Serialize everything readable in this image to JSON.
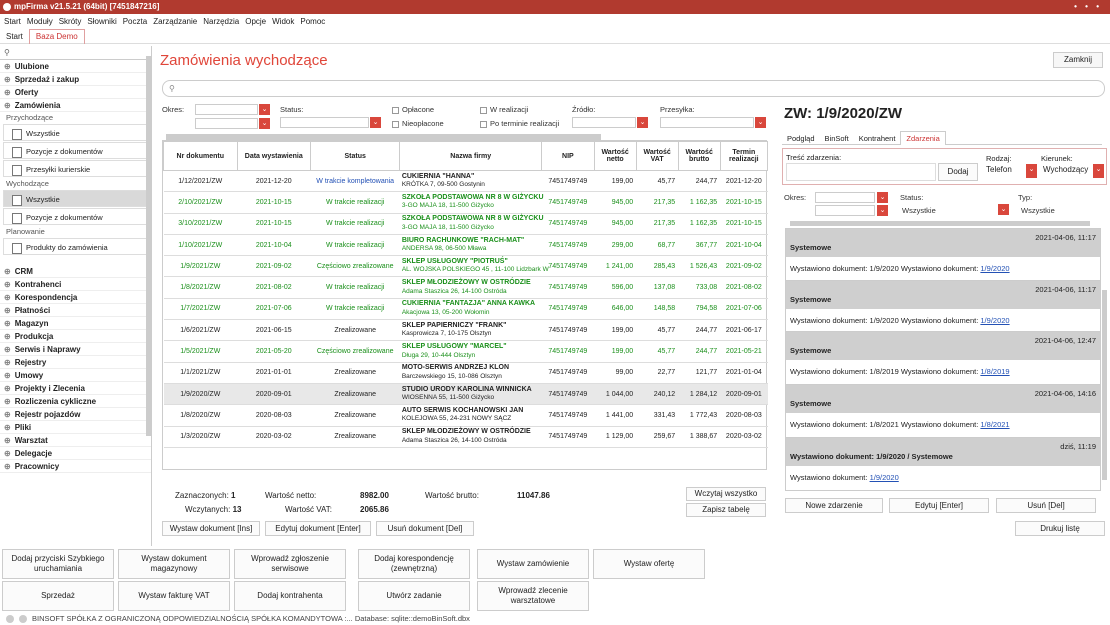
{
  "window": {
    "title": "mpFirma v21.5.21 (64bit) [7451847216]",
    "controls": "• • •"
  },
  "menu": [
    "Start",
    "Moduły",
    "Skróty",
    "Słowniki",
    "Poczta",
    "Zarządzanie",
    "Narzędzia",
    "Opcje",
    "Widok",
    "Pomoc"
  ],
  "tabs": [
    "Start",
    "Baza Demo"
  ],
  "sidebar": {
    "search_icon": "search-icon",
    "top_items": [
      "Ulubione",
      "Sprzedaż i zakup",
      "Oferty",
      "Zamówienia"
    ],
    "groups": [
      {
        "label": "Przychodzące",
        "items": [
          "Wszystkie",
          "Pozycje z dokumentów",
          "Przesyłki kurierskie"
        ]
      },
      {
        "label": "Wychodzące",
        "items": [
          "Wszystkie",
          "Pozycje z dokumentów"
        ]
      },
      {
        "label": "Planowanie",
        "items": [
          "Produkty do zamówienia"
        ]
      }
    ],
    "bottom_items": [
      "CRM",
      "Kontrahenci",
      "Korespondencja",
      "Płatności",
      "Magazyn",
      "Produkcja",
      "Serwis i Naprawy",
      "Rejestry",
      "Umowy",
      "Projekty i Zlecenia",
      "Rozliczenia cykliczne",
      "Rejestr pojazdów",
      "Pliki",
      "Warsztat",
      "Delegacje",
      "Pracownicy"
    ]
  },
  "page": {
    "title": "Zamówienia wychodzące",
    "close_label": "Zamknij"
  },
  "filters": {
    "okres": "Okres:",
    "status": "Status:",
    "oplacone": "Opłacone",
    "nieoplacone": "Nieopłacone",
    "w_realizacji": "W realizacji",
    "po_terminie": "Po terminie realizacji",
    "zrodlo": "Źródło:",
    "przesylka": "Przesyłka:"
  },
  "grid": {
    "columns": [
      "Nr dokumentu",
      "Data wystawienia",
      "Status",
      "Nazwa firmy",
      "NIP",
      "Wartość netto",
      "Wartość VAT",
      "Wartość brutto",
      "Termin realizacji"
    ],
    "rows": [
      {
        "nr": "1/12/2021/ZW",
        "data": "2021-12-20",
        "status": "W trakcie kompletowania",
        "firma": "CUKIERNIA \"HANNA\"",
        "adres": "KRÓTKA 7, 09-500 Gostynin",
        "nip": "7451749749",
        "netto": "199,00",
        "vat": "45,77",
        "brutto": "244,77",
        "termin": "2021-12-20",
        "style": "blue"
      },
      {
        "nr": "2/10/2021/ZW",
        "data": "2021-10-15",
        "status": "W trakcie realizacji",
        "firma": "SZKOŁA PODSTAWOWA NR 8 W GIŻYCKU",
        "adres": "3-GO MAJA 18, 11-500 Giżycko",
        "nip": "7451749749",
        "netto": "945,00",
        "vat": "217,35",
        "brutto": "1 162,35",
        "termin": "2021-10-15",
        "style": "green"
      },
      {
        "nr": "3/10/2021/ZW",
        "data": "2021-10-15",
        "status": "W trakcie realizacji",
        "firma": "SZKOŁA PODSTAWOWA NR 8 W GIŻYCKU",
        "adres": "3-GO MAJA 18, 11-500 Giżycko",
        "nip": "7451749749",
        "netto": "945,00",
        "vat": "217,35",
        "brutto": "1 162,35",
        "termin": "2021-10-15",
        "style": "green"
      },
      {
        "nr": "1/10/2021/ZW",
        "data": "2021-10-04",
        "status": "W trakcie realizacji",
        "firma": "BIURO RACHUNKOWE \"RACH-MAT\"",
        "adres": "ANDERSA 98, 06-500 Mława",
        "nip": "7451749749",
        "netto": "299,00",
        "vat": "68,77",
        "brutto": "367,77",
        "termin": "2021-10-04",
        "style": "green"
      },
      {
        "nr": "1/9/2021/ZW",
        "data": "2021-09-02",
        "status": "Częściowo zrealizowane",
        "firma": "SKLEP USŁUGOWY \"PIOTRUŚ\"",
        "adres": "AL. WOJSKA POLSKIEGO 45 , 11-100 Lidzbark W",
        "nip": "7451749749",
        "netto": "1 241,00",
        "vat": "285,43",
        "brutto": "1 526,43",
        "termin": "2021-09-02",
        "style": "green-blue"
      },
      {
        "nr": "1/8/2021/ZW",
        "data": "2021-08-02",
        "status": "W trakcie realizacji",
        "firma": "SKLEP MŁODZIEŻOWY W OSTRÓDZIE",
        "adres": "Adama Staszica 26, 14-100 Ostróda",
        "nip": "7451749749",
        "netto": "596,00",
        "vat": "137,08",
        "brutto": "733,08",
        "termin": "2021-08-02",
        "style": "green"
      },
      {
        "nr": "1/7/2021/ZW",
        "data": "2021-07-06",
        "status": "W trakcie realizacji",
        "firma": "CUKIERNIA \"FANTAZJA\" ANNA KAWKA",
        "adres": "Akacjowa 13, 05-200 Wołomin",
        "nip": "7451749749",
        "netto": "646,00",
        "vat": "148,58",
        "brutto": "794,58",
        "termin": "2021-07-06",
        "style": "green"
      },
      {
        "nr": "1/6/2021/ZW",
        "data": "2021-06-15",
        "status": "Zrealizowane",
        "firma": "SKLEP PAPIERNICZY \"FRANK\"",
        "adres": "Kasprowicza 7, 10-175 Olsztyn",
        "nip": "7451749749",
        "netto": "199,00",
        "vat": "45,77",
        "brutto": "244,77",
        "termin": "2021-06-17",
        "style": ""
      },
      {
        "nr": "1/5/2021/ZW",
        "data": "2021-05-20",
        "status": "Częściowo zrealizowane",
        "firma": "SKLEP USŁUGOWY \"MARCEL\"",
        "adres": "Długa 29, 10-444 Olsztyn",
        "nip": "7451749749",
        "netto": "199,00",
        "vat": "45,77",
        "brutto": "244,77",
        "termin": "2021-05-21",
        "style": "green-blue"
      },
      {
        "nr": "1/1/2021/ZW",
        "data": "2021-01-01",
        "status": "Zrealizowane",
        "firma": "MOTO-SERWIS ANDRZEJ KLON",
        "adres": "Barczewskiego 15, 10-086 Olsztyn",
        "nip": "7451749749",
        "netto": "99,00",
        "vat": "22,77",
        "brutto": "121,77",
        "termin": "2021-01-04",
        "style": ""
      },
      {
        "nr": "1/9/2020/ZW",
        "data": "2020-09-01",
        "status": "Zrealizowane",
        "firma": "STUDIO URODY KAROLINA WINNICKA",
        "adres": "WIOSENNA 55, 11-500 Giżycko",
        "nip": "7451749749",
        "netto": "1 044,00",
        "vat": "240,12",
        "brutto": "1 284,12",
        "termin": "2020-09-01",
        "style": "sel"
      },
      {
        "nr": "1/8/2020/ZW",
        "data": "2020-08-03",
        "status": "Zrealizowane",
        "firma": "AUTO SERWIS KOCHANOWSKI JAN",
        "adres": "KOLEJOWA 55, 24-231 NOWY SĄCZ",
        "nip": "7451749749",
        "netto": "1 441,00",
        "vat": "331,43",
        "brutto": "1 772,43",
        "termin": "2020-08-03",
        "style": ""
      },
      {
        "nr": "1/3/2020/ZW",
        "data": "2020-03-02",
        "status": "Zrealizowane",
        "firma": "SKLEP MŁODZIEŻOWY W OSTRÓDZIE",
        "adres": "Adama Staszica 26, 14-100 Ostróda",
        "nip": "7451749749",
        "netto": "1 129,00",
        "vat": "259,67",
        "brutto": "1 388,67",
        "termin": "2020-03-02",
        "style": ""
      }
    ]
  },
  "summary": {
    "zaznaczonych_label": "Zaznaczonych:",
    "zaznaczonych": "1",
    "wczytanych_label": "Wczytanych:",
    "wczytanych": "13",
    "netto_label": "Wartość netto:",
    "netto": "8982.00",
    "vat_label": "Wartość VAT:",
    "vat": "2065.86",
    "brutto_label": "Wartość brutto:",
    "brutto": "11047.86",
    "load_all": "Wczytaj wszystko",
    "save_table": "Zapisz tabelę"
  },
  "actions": {
    "issue": "Wystaw dokument [Ins]",
    "edit": "Edytuj dokument [Enter]",
    "delete": "Usuń dokument [Del]"
  },
  "right": {
    "title": "ZW: 1/9/2020/ZW",
    "tabs": [
      "Podgląd",
      "BinSoft",
      "Kontrahent",
      "Zdarzenia"
    ],
    "tresc_label": "Treść zdarzenia:",
    "dodaj": "Dodaj",
    "rodzaj_label": "Rodzaj:",
    "rodzaj": "Telefon",
    "kierunek_label": "Kierunek:",
    "kierunek": "Wychodzący",
    "okres_label": "Okres:",
    "status_label": "Status:",
    "status": "Wszystkie",
    "typ_label": "Typ:",
    "typ": "Wszystkie",
    "events": [
      {
        "kind": "Systemowe",
        "date": "2021-04-06, 11:17",
        "text": "Wystawiono dokument: 1/9/2020 Wystawiono dokument: ",
        "link": "1/9/2020"
      },
      {
        "kind": "Systemowe",
        "date": "2021-04-06, 11:17",
        "text": "Wystawiono dokument: 1/9/2020 Wystawiono dokument: ",
        "link": "1/9/2020"
      },
      {
        "kind": "Systemowe",
        "date": "2021-04-06, 12:47",
        "text": "Wystawiono dokument: 1/8/2019 Wystawiono dokument: ",
        "link": "1/8/2019"
      },
      {
        "kind": "Systemowe",
        "date": "2021-04-06, 14:16",
        "text": "Wystawiono dokument: 1/8/2021 Wystawiono dokument: ",
        "link": "1/8/2021"
      },
      {
        "kind": "Wystawiono dokument: 1/9/2020 / Systemowe",
        "date": "dziś, 11:19",
        "text": "Wystawiono dokument: ",
        "link": "1/9/2020"
      }
    ],
    "new_event": "Nowe zdarzenie",
    "edit_event": "Edytuj [Enter]",
    "delete_event": "Usuń [Del]",
    "print": "Drukuj listę"
  },
  "shortcuts": [
    [
      "Dodaj przyciski Szybkiego uruchamiania",
      "Wystaw dokument magazynowy",
      "Wprowadź zgłoszenie serwisowe",
      "Dodaj korespondencję (zewnętrzną)",
      "Wystaw zamówienie",
      "Wystaw ofertę"
    ],
    [
      "Sprzedaż",
      "Wystaw fakturę VAT",
      "Dodaj kontrahenta",
      "Utwórz zadanie",
      "Wprowadź zlecenie warsztatowe"
    ]
  ],
  "statusbar": "BINSOFT SPÓŁKA Z OGRANICZONĄ ODPOWIEDZIALNOŚCIĄ SPÓŁKA KOMANDYTOWA :... Database: sqlite::demoBinSoft.dbx"
}
